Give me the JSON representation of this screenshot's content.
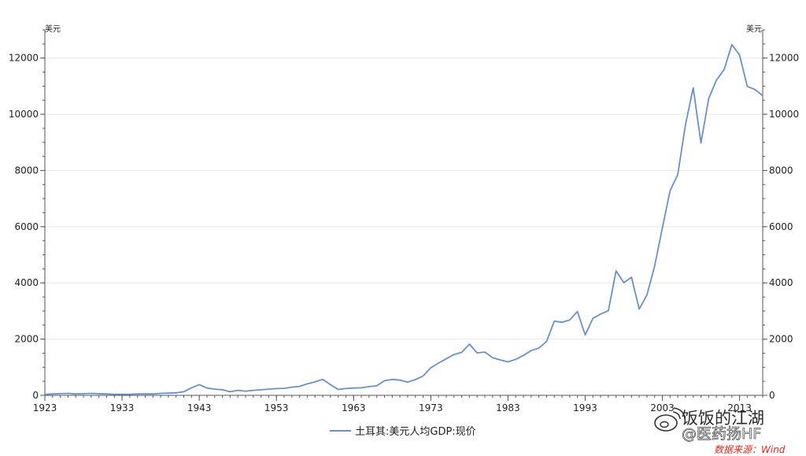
{
  "chart_data": {
    "type": "line",
    "units": {
      "left": "美元",
      "right": "美元"
    },
    "x_tick_labels": [
      "1923",
      "1933",
      "1943",
      "1953",
      "1963",
      "1973",
      "1983",
      "1993",
      "2003",
      "2013"
    ],
    "y_ticks": [
      0,
      2000,
      4000,
      6000,
      8000,
      10000,
      12000
    ],
    "xlim": [
      1923,
      2016
    ],
    "ylim": [
      0,
      13000
    ],
    "grid": "horizontal",
    "legend_position": "bottom",
    "x": [
      1923,
      1924,
      1925,
      1926,
      1927,
      1928,
      1929,
      1930,
      1931,
      1932,
      1933,
      1934,
      1935,
      1936,
      1937,
      1938,
      1939,
      1940,
      1941,
      1942,
      1943,
      1944,
      1945,
      1946,
      1947,
      1948,
      1949,
      1950,
      1951,
      1952,
      1953,
      1954,
      1955,
      1956,
      1957,
      1958,
      1959,
      1960,
      1961,
      1962,
      1963,
      1964,
      1965,
      1966,
      1967,
      1968,
      1969,
      1970,
      1971,
      1972,
      1973,
      1974,
      1975,
      1976,
      1977,
      1978,
      1979,
      1980,
      1981,
      1982,
      1983,
      1984,
      1985,
      1986,
      1987,
      1988,
      1989,
      1990,
      1991,
      1992,
      1993,
      1994,
      1995,
      1996,
      1997,
      1998,
      1999,
      2000,
      2001,
      2002,
      2003,
      2004,
      2005,
      2006,
      2007,
      2008,
      2009,
      2010,
      2011,
      2012,
      2013,
      2014,
      2015,
      2016
    ],
    "series": [
      {
        "name": "土耳其:美元人均GDP:现价",
        "color": "#6a8fc9",
        "values": [
          30,
          50,
          60,
          70,
          50,
          60,
          70,
          60,
          50,
          40,
          40,
          40,
          50,
          50,
          50,
          70,
          80,
          90,
          130,
          270,
          380,
          260,
          220,
          200,
          130,
          180,
          150,
          180,
          200,
          220,
          240,
          250,
          290,
          320,
          410,
          480,
          570,
          380,
          210,
          240,
          260,
          270,
          310,
          340,
          520,
          570,
          540,
          470,
          560,
          690,
          980,
          1150,
          1300,
          1450,
          1530,
          1820,
          1510,
          1540,
          1340,
          1260,
          1190,
          1280,
          1420,
          1590,
          1680,
          1920,
          2640,
          2600,
          2680,
          2980,
          2150,
          2740,
          2890,
          3010,
          4430,
          4010,
          4200,
          3070,
          3570,
          4600,
          5950,
          7280,
          7860,
          9630,
          10940,
          8980,
          10560,
          11210,
          11590,
          12480,
          12110,
          10990,
          10880,
          10660
        ]
      }
    ],
    "legend": [
      "土耳其:美元人均GDP:现价"
    ]
  },
  "watermark": {
    "name": "饭饭的江湖",
    "handle": "@医药扬HF"
  },
  "source_note": "数据来源：Wind",
  "colors": {
    "axis": "#555555",
    "grid": "#e8e8e8",
    "line": "#6a8fc9",
    "source": "#e0281e"
  },
  "icons": {
    "watermark_logo": "weibo-logo-icon"
  }
}
